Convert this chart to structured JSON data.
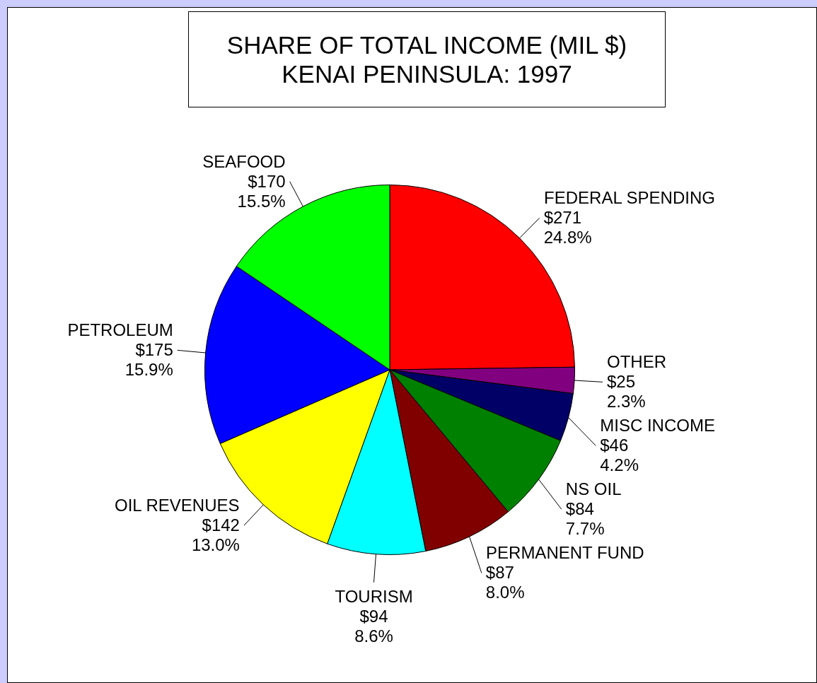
{
  "chart_data": {
    "type": "pie",
    "title": "SHARE OF TOTAL INCOME (MIL $)",
    "subtitle": "KENAI PENINSULA: 1997",
    "categories": [
      "FEDERAL SPENDING",
      "OTHER",
      "MISC INCOME",
      "NS OIL",
      "PERMANENT FUND",
      "TOURISM",
      "OIL REVENUES",
      "PETROLEUM",
      "SEAFOOD"
    ],
    "values": [
      271,
      25,
      46,
      84,
      87,
      94,
      142,
      175,
      170
    ],
    "value_labels": [
      "$271\n24.8%",
      "$25\n2.3%",
      "$46\n4.2%",
      "$84\n7.7%",
      "$87\n8.0%",
      "$94\n8.6%",
      "$142\n13.0%",
      "$175\n15.9%",
      "$170\n15.5%"
    ],
    "colors": [
      "#ff0000",
      "#800080",
      "#000066",
      "#008000",
      "#800000",
      "#00ffff",
      "#ffff00",
      "#0000ff",
      "#00ff00"
    ]
  }
}
